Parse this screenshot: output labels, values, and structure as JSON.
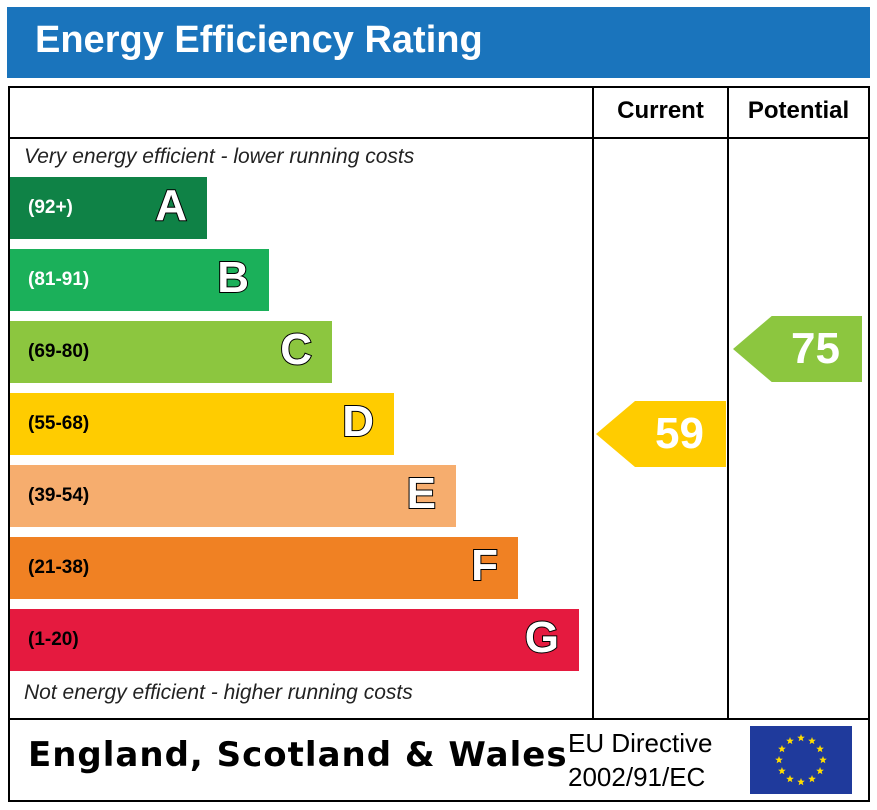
{
  "header": {
    "title": "Energy Efficiency Rating"
  },
  "columns": {
    "current": "Current",
    "potential": "Potential"
  },
  "notes": {
    "top": "Very energy efficient - lower running costs",
    "bottom": "Not energy efficient - higher running costs"
  },
  "footer": {
    "region": "England, Scotland & Wales",
    "directive_line1": "EU Directive",
    "directive_line2": "2002/91/EC",
    "flag": "eu-flag-icon"
  },
  "chart_data": {
    "type": "bar",
    "title": "Energy Efficiency Rating",
    "bands": [
      {
        "range": "(92+)",
        "letter": "A",
        "color": "#0f8246",
        "text_color": "#ffffff"
      },
      {
        "range": "(81-91)",
        "letter": "B",
        "color": "#1bb05a",
        "text_color": "#ffffff"
      },
      {
        "range": "(69-80)",
        "letter": "C",
        "color": "#8cc63f",
        "text_color": "#000000"
      },
      {
        "range": "(55-68)",
        "letter": "D",
        "color": "#ffcc00",
        "text_color": "#000000"
      },
      {
        "range": "(39-54)",
        "letter": "E",
        "color": "#f6ad6e",
        "text_color": "#000000"
      },
      {
        "range": "(21-38)",
        "letter": "F",
        "color": "#f08123",
        "text_color": "#000000"
      },
      {
        "range": "(1-20)",
        "letter": "G",
        "color": "#e51a3f",
        "text_color": "#000000"
      }
    ],
    "current": {
      "value": "59",
      "band": "D",
      "color": "#ffcc00"
    },
    "potential": {
      "value": "75",
      "band": "C",
      "color": "#8cc63f"
    }
  }
}
